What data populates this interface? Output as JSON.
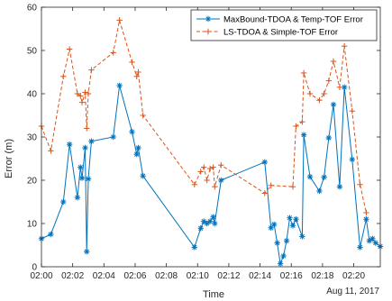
{
  "chart_data": {
    "type": "line",
    "xlabel": "Time",
    "ylabel": "Error (m)",
    "date_label": "Aug 11, 2017",
    "xlim": [
      "02:00",
      "02:21.7"
    ],
    "ylim": [
      0,
      60
    ],
    "x_ticks": [
      "02:00",
      "02:02",
      "02:04",
      "02:06",
      "02:08",
      "02:10",
      "02:12",
      "02:14",
      "02:16",
      "02:18",
      "02:20"
    ],
    "y_ticks": [
      0,
      10,
      20,
      30,
      40,
      50,
      60
    ],
    "grid": false,
    "legend_position": "top-right",
    "series": [
      {
        "name": "MaxBound-TDOA & Temp-TOF Error",
        "color": "#0072BD",
        "marker": "asterisk",
        "line_style": "solid",
        "x": [
          "02:00.0",
          "02:00.6",
          "02:01.4",
          "02:01.8",
          "02:02.3",
          "02:02.5",
          "02:02.6",
          "02:02.8",
          "02:02.9",
          "02:03.0",
          "02:03.2",
          "02:04.6",
          "02:05.0",
          "02:05.8",
          "02:06.1",
          "02:06.2",
          "02:06.5",
          "02:09.8",
          "02:10.2",
          "02:10.4",
          "02:10.6",
          "02:10.8",
          "02:11.0",
          "02:11.1",
          "02:11.5",
          "02:14.3",
          "02:14.7",
          "02:14.9",
          "02:15.1",
          "02:15.3",
          "02:15.5",
          "02:15.7",
          "02:15.9",
          "02:16.1",
          "02:16.3",
          "02:16.7",
          "02:16.8",
          "02:17.2",
          "02:17.8",
          "02:18.1",
          "02:18.4",
          "02:18.7",
          "02:19.1",
          "02:19.4",
          "02:19.9",
          "02:20.4",
          "02:20.8",
          "02:21.0",
          "02:21.2",
          "02:21.4",
          "02:21.7"
        ],
        "y": [
          6.5,
          7.5,
          15,
          28.3,
          16,
          23,
          20.5,
          27.5,
          3.5,
          20.3,
          29,
          30,
          41.9,
          31.2,
          26,
          27.5,
          21,
          4.5,
          8.9,
          10.5,
          10,
          10.5,
          11.5,
          10,
          20,
          24.2,
          9,
          9.8,
          5.5,
          0.7,
          2.5,
          6,
          11.3,
          9.5,
          11,
          7,
          30.5,
          20.8,
          17.5,
          20.7,
          29.8,
          37.5,
          18.5,
          41.5,
          24.8,
          4.5,
          11,
          6,
          6.5,
          5.5,
          4.7
        ]
      },
      {
        "name": "LS-TDOA & Simple-TOF Error",
        "color": "#D95319",
        "marker": "plus",
        "line_style": "dashed",
        "x": [
          "02:00.0",
          "02:00.6",
          "02:01.4",
          "02:01.8",
          "02:02.3",
          "02:02.5",
          "02:02.6",
          "02:02.8",
          "02:02.9",
          "02:03.0",
          "02:03.2",
          "02:04.6",
          "02:05.0",
          "02:05.8",
          "02:06.1",
          "02:06.2",
          "02:06.5",
          "02:09.8",
          "02:10.2",
          "02:10.4",
          "02:10.6",
          "02:10.8",
          "02:11.0",
          "02:11.1",
          "02:11.5",
          "02:14.3",
          "02:14.7",
          "02:16.1",
          "02:16.3",
          "02:16.7",
          "02:16.8",
          "02:17.2",
          "02:17.8",
          "02:18.1",
          "02:18.4",
          "02:18.7",
          "02:19.1",
          "02:19.4",
          "02:19.9",
          "02:20.4",
          "02:20.8"
        ],
        "y": [
          32.5,
          26.8,
          44,
          50.3,
          40,
          39.5,
          38,
          40.3,
          32,
          40,
          45.5,
          49.5,
          57,
          47.3,
          44,
          45,
          35,
          19,
          22,
          23,
          20,
          22.7,
          23,
          18.5,
          23.5,
          17,
          18.8,
          18.5,
          32.5,
          33.5,
          44.8,
          40,
          38.5,
          40,
          43,
          47.5,
          41.5,
          51,
          36,
          19,
          12.5
        ]
      }
    ]
  }
}
